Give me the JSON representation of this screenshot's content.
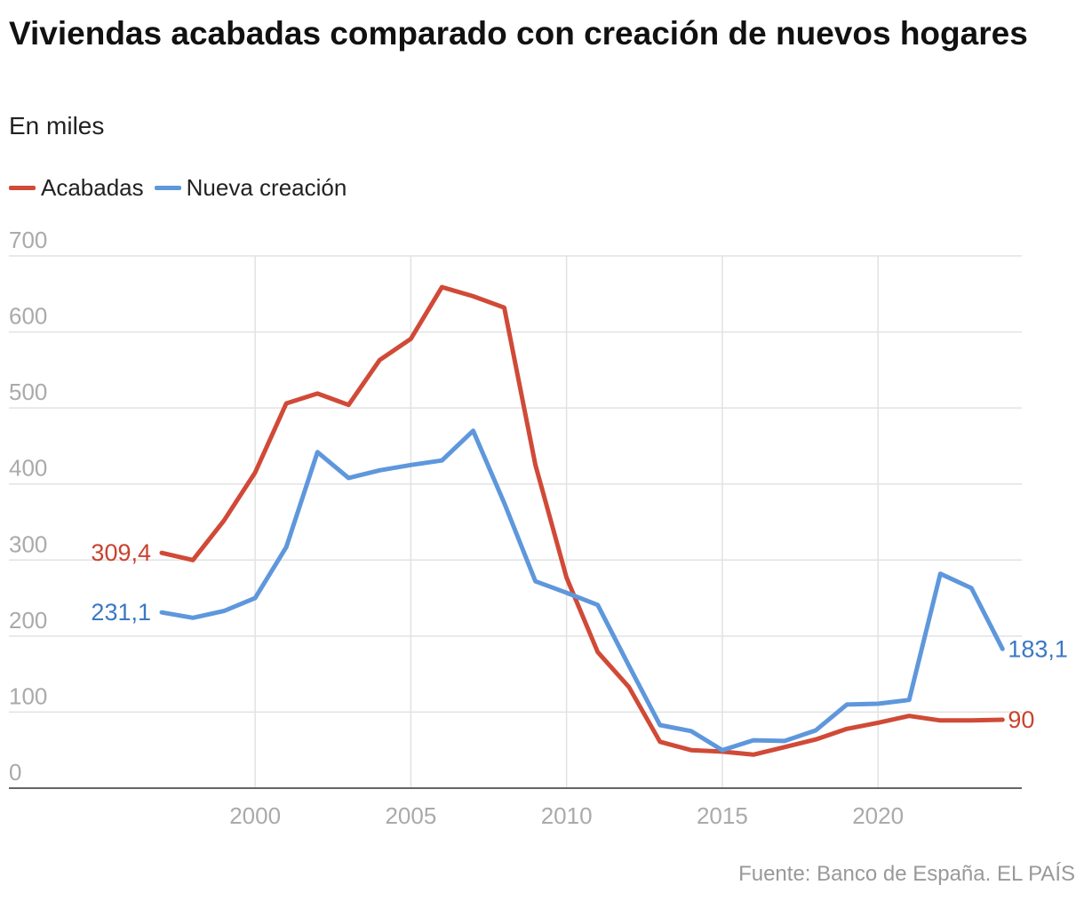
{
  "chart_data": {
    "type": "line",
    "title": "Viviendas acabadas comparado con creación de nuevos hogares",
    "subtitle": "En miles",
    "source": "Fuente: Banco de España. EL PAÍS",
    "x": [
      1997,
      1998,
      1999,
      2000,
      2001,
      2002,
      2003,
      2004,
      2005,
      2006,
      2007,
      2008,
      2009,
      2010,
      2011,
      2012,
      2013,
      2014,
      2015,
      2016,
      2017,
      2018,
      2019,
      2020,
      2021,
      2022,
      2023,
      2024
    ],
    "xticks": [
      2000,
      2005,
      2010,
      2015,
      2020
    ],
    "yticks": [
      0,
      100,
      200,
      300,
      400,
      500,
      600,
      700
    ],
    "ylim": [
      0,
      700
    ],
    "grid": true,
    "legend_position": "top-left",
    "series": [
      {
        "name": "Acabadas",
        "color": "#d04a37",
        "label_color": "#c9432f",
        "start_label": "309,4",
        "end_label": "90",
        "values": [
          309.4,
          300,
          352,
          415,
          506,
          519,
          504,
          563,
          591,
          659,
          647,
          632,
          425,
          277,
          179,
          133,
          61,
          50,
          48,
          44,
          54,
          64,
          78,
          86,
          95,
          89,
          89,
          90
        ]
      },
      {
        "name": "Nueva creación",
        "color": "#5e97dc",
        "label_color": "#3b78c4",
        "start_label": "231,1",
        "end_label": "183,1",
        "values": [
          231.1,
          224,
          233,
          250,
          317,
          442,
          408,
          418,
          425,
          431,
          470,
          375,
          272,
          257,
          241,
          161,
          83,
          75,
          50,
          63,
          62,
          76,
          110,
          111,
          116,
          282,
          263,
          183.1
        ]
      }
    ]
  }
}
